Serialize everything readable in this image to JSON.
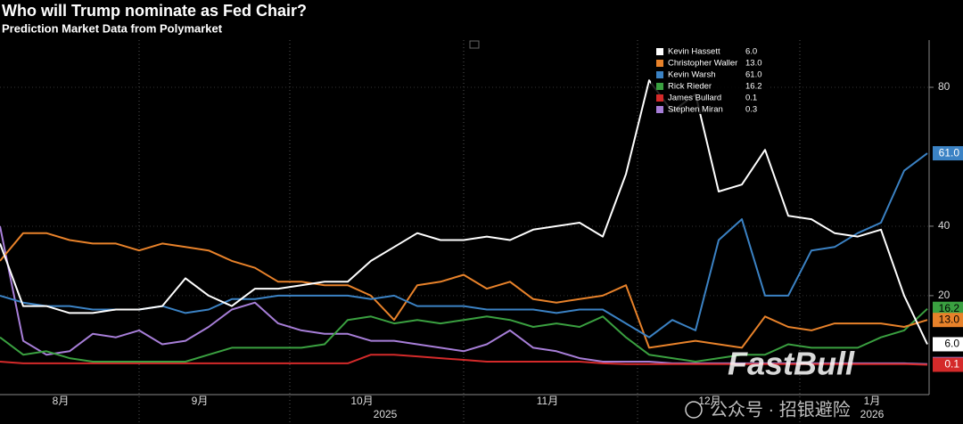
{
  "chart_data": {
    "type": "line",
    "title": "Who will Trump nominate as Fed Chair?",
    "subtitle": "Prediction Market Data from Polymarket",
    "categories": [
      null,
      null,
      null,
      "8月",
      null,
      null,
      null,
      null,
      null,
      "9月",
      null,
      null,
      null,
      null,
      null,
      null,
      "10月",
      null,
      null,
      null,
      null,
      null,
      null,
      null,
      "11月",
      null,
      null,
      null,
      null,
      null,
      null,
      "12月",
      null,
      null,
      null,
      null,
      null,
      null,
      "1月",
      null,
      null
    ],
    "year_labels": [
      null,
      null,
      null,
      null,
      null,
      null,
      null,
      null,
      null,
      null,
      null,
      null,
      null,
      null,
      null,
      null,
      null,
      "2025",
      null,
      null,
      null,
      null,
      null,
      null,
      null,
      null,
      null,
      null,
      null,
      null,
      null,
      null,
      null,
      null,
      null,
      null,
      null,
      null,
      "2026",
      null,
      null
    ],
    "ylim": [
      -8.5,
      93.6
    ],
    "yticks": [
      20,
      40,
      80
    ],
    "grid": true,
    "series": [
      {
        "name": "Stephen Miran",
        "color": "#a77ed8",
        "last_label": "0.3",
        "values": [
          40,
          7,
          3,
          4,
          9,
          8,
          10,
          6,
          7,
          11,
          16,
          18,
          12,
          10,
          9,
          9,
          7,
          7,
          6,
          5,
          4,
          6,
          10,
          5,
          4,
          2,
          1,
          1,
          1,
          0.5,
          0.5,
          0.5,
          0.5,
          0.5,
          0.5,
          0.5,
          0.5,
          0.5,
          0.5,
          0.5,
          0.3
        ]
      },
      {
        "name": "James Bullard",
        "color": "#d42a2a",
        "last_label": "0.1",
        "values": [
          1,
          0.5,
          0.5,
          0.5,
          0.5,
          0.5,
          0.5,
          0.5,
          0.5,
          0.5,
          0.5,
          0.5,
          0.5,
          0.5,
          0.5,
          0.5,
          3,
          3,
          2.5,
          2,
          1.5,
          1,
          1,
          1,
          1,
          1,
          0.5,
          0.3,
          0.3,
          0.3,
          0.3,
          0.3,
          0.3,
          0.3,
          0.3,
          0.3,
          0.3,
          0.3,
          0.3,
          0.3,
          0.1
        ]
      },
      {
        "name": "Rick Rieder",
        "color": "#3aa040",
        "last_label": "16.2",
        "values": [
          8,
          3,
          4,
          2,
          1,
          1,
          1,
          1,
          1,
          3,
          5,
          5,
          5,
          5,
          6,
          13,
          14,
          12,
          13,
          12,
          13,
          14,
          13,
          11,
          12,
          11,
          14,
          8,
          3,
          2,
          1,
          2,
          3,
          3,
          6,
          5,
          5,
          5,
          8,
          10,
          16.2
        ]
      },
      {
        "name": "Christopher Waller",
        "color": "#e8822a",
        "last_label": "13.0",
        "values": [
          30,
          38,
          38,
          36,
          35,
          35,
          33,
          35,
          34,
          33,
          30,
          28,
          24,
          24,
          23,
          23,
          20,
          13,
          23,
          24,
          26,
          22,
          24,
          19,
          18,
          19,
          20,
          23,
          5,
          6,
          7,
          6,
          5,
          14,
          11,
          10,
          12,
          12,
          12,
          11,
          13
        ]
      },
      {
        "name": "Kevin Warsh",
        "color": "#3b82c4",
        "last_label": "61.0",
        "values": [
          20,
          18,
          17,
          17,
          16,
          16,
          16,
          17,
          15,
          16,
          19,
          19,
          20,
          20,
          20,
          20,
          19,
          20,
          17,
          17,
          17,
          16,
          16,
          16,
          15,
          16,
          16,
          12,
          8,
          13,
          10,
          36,
          42,
          20,
          20,
          33,
          34,
          38,
          41,
          56,
          61
        ]
      },
      {
        "name": "Kevin Hassett",
        "color": "#ffffff",
        "last_label": "6.0",
        "values": [
          35,
          17,
          17,
          15,
          15,
          16,
          16,
          17,
          25,
          20,
          17,
          22,
          22,
          23,
          24,
          24,
          30,
          34,
          38,
          36,
          36,
          37,
          36,
          39,
          40,
          41,
          37,
          55,
          82,
          73,
          78,
          50,
          52,
          62,
          43,
          42,
          38,
          37,
          39,
          20,
          6
        ]
      }
    ],
    "legend_order": [
      5,
      3,
      4,
      2,
      1,
      0
    ],
    "watermark": "FastBull",
    "watermark_sub": "公众号 · 招银避险"
  }
}
